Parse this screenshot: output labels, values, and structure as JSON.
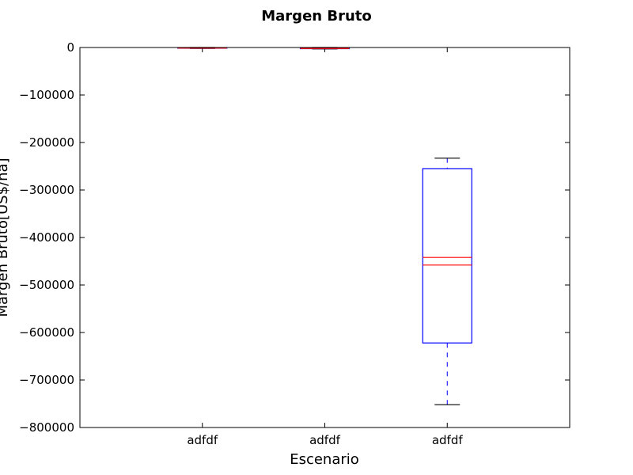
{
  "chart_data": {
    "type": "boxplot",
    "title": "Margen Bruto",
    "xlabel": "Escenario",
    "ylabel": "Margen Bruto[US$/ha]",
    "ylim": [
      -800000,
      0
    ],
    "yticks": [
      0,
      -100000,
      -200000,
      -300000,
      -400000,
      -500000,
      -600000,
      -700000,
      -800000
    ],
    "ytick_labels": [
      "0",
      "−100000",
      "−200000",
      "−300000",
      "−400000",
      "−500000",
      "−600000",
      "−700000",
      "−800000"
    ],
    "categories": [
      "adfdf",
      "adfdf",
      "adfdf"
    ],
    "boxes": [
      {
        "whisker_high": 0,
        "q3": -500,
        "median_a": -1000,
        "median_b": -1000,
        "q1": -1500,
        "whisker_low": -2000
      },
      {
        "whisker_high": 0,
        "q3": -1000,
        "median_a": -2000,
        "median_b": -2000,
        "q1": -2500,
        "whisker_low": -3000
      },
      {
        "whisker_high": -233000,
        "q3": -255000,
        "median_a": -442000,
        "median_b": -458000,
        "q1": -622000,
        "whisker_low": -752000
      }
    ],
    "colors": {
      "box": "#0000ff",
      "median": "#ff0000",
      "whisker": "#0000ff",
      "cap": "#000000",
      "axes": "#000000"
    }
  }
}
